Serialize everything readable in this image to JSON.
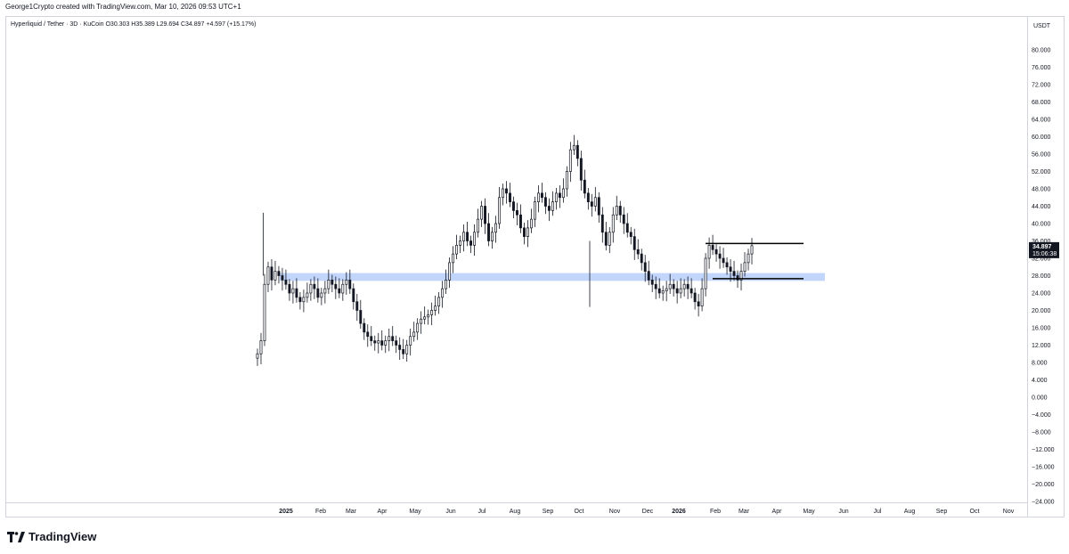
{
  "header": {
    "author_line": "George1Crypto created with TradingView.com, Mar 10, 2026 09:53 UTC+1"
  },
  "symbol": {
    "title": "Hyperliquid / Tether · 3D · KuCoin",
    "ohlc": "O30.303  H35.389  L29.694  C34.897  +4.597 (+15.17%)"
  },
  "price_axis": {
    "unit": "USDT",
    "last_price": "34.897",
    "countdown": "15:06:38",
    "last_price_color": "#131722"
  },
  "logo": {
    "text": "TradingView"
  },
  "chart_data": {
    "type": "candlestick",
    "ylim": [
      -24,
      84
    ],
    "y_ticks": [
      "80.000",
      "76.000",
      "72.000",
      "68.000",
      "64.000",
      "60.000",
      "56.000",
      "52.000",
      "48.000",
      "44.000",
      "40.000",
      "36.000",
      "32.000",
      "28.000",
      "24.000",
      "20.000",
      "16.000",
      "12.000",
      "8.000",
      "4.000",
      "0.000",
      "−4.000",
      "−8.000",
      "−12.000",
      "−16.000",
      "−20.000",
      "−24.000"
    ],
    "x_ticks": [
      {
        "label": "2025",
        "bold": true
      },
      {
        "label": "Feb"
      },
      {
        "label": "Mar"
      },
      {
        "label": "Apr"
      },
      {
        "label": "May"
      },
      {
        "label": "Jun"
      },
      {
        "label": "Jul"
      },
      {
        "label": "Aug"
      },
      {
        "label": "Sep"
      },
      {
        "label": "Oct"
      },
      {
        "label": "Nov"
      },
      {
        "label": "Dec"
      },
      {
        "label": "2026",
        "bold": true
      },
      {
        "label": "Feb"
      },
      {
        "label": "Mar"
      },
      {
        "label": "Apr"
      },
      {
        "label": "May"
      },
      {
        "label": "Jun"
      },
      {
        "label": "Jul"
      },
      {
        "label": "Aug"
      },
      {
        "label": "Sep"
      },
      {
        "label": "Oct"
      },
      {
        "label": "Nov"
      }
    ],
    "closes": [
      10,
      13,
      26,
      30,
      27,
      29,
      28,
      27,
      26,
      24,
      25,
      23,
      22,
      23,
      24,
      26,
      25,
      23,
      24,
      25,
      27,
      26,
      25,
      24,
      26,
      27,
      25,
      22,
      20,
      17,
      15,
      14,
      13,
      12.5,
      13,
      12,
      13,
      14,
      13,
      12,
      11,
      10,
      12,
      14,
      15,
      17,
      18,
      18.5,
      19,
      20,
      21,
      23,
      25,
      27,
      31,
      33,
      35,
      36,
      38,
      36,
      35,
      38,
      41,
      44,
      40,
      36,
      38,
      40,
      46,
      48,
      47,
      45,
      43,
      42,
      39,
      37,
      39,
      41,
      45,
      47,
      46,
      44,
      43,
      45,
      47,
      46,
      48,
      52,
      57,
      58,
      55,
      50,
      47,
      45,
      44,
      46,
      42,
      38,
      35,
      38,
      42,
      44,
      42,
      40,
      38,
      37,
      34,
      33,
      31,
      29,
      27,
      26,
      25,
      24,
      24.5,
      25,
      26,
      25,
      24,
      25,
      26,
      25,
      24,
      22,
      21,
      25,
      32,
      35,
      34,
      33,
      32,
      31,
      30,
      29,
      28,
      27,
      29,
      31,
      33,
      34.897
    ],
    "support_zone": {
      "low": 26.8,
      "high": 28.6,
      "color": "#bbd0fb"
    },
    "range_lines": [
      {
        "value": 35.4
      },
      {
        "value": 27.3
      }
    ],
    "up_color": "#ffffff",
    "down_color": "#131722"
  }
}
